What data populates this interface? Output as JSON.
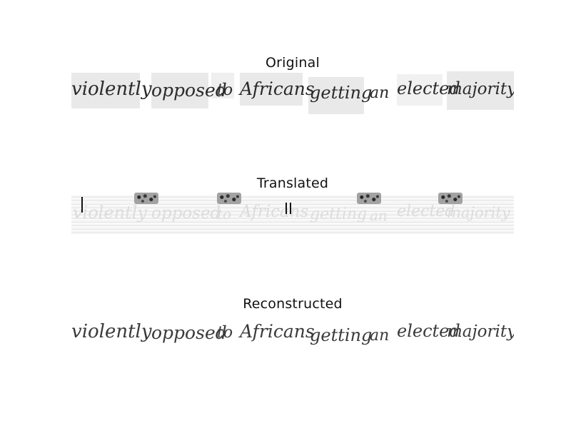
{
  "panels": {
    "original_title": "Original",
    "translated_title": "Translated",
    "reconstructed_title": "Reconstructed"
  },
  "handwriting": {
    "original_words": [
      "violently",
      "opposed",
      "to",
      "Africans",
      "getting",
      "an",
      "elected",
      "majority"
    ],
    "reconstructed_words": [
      "violently",
      "opposed",
      "to",
      "Africans",
      "getting",
      "an",
      "elected",
      "majority"
    ]
  }
}
